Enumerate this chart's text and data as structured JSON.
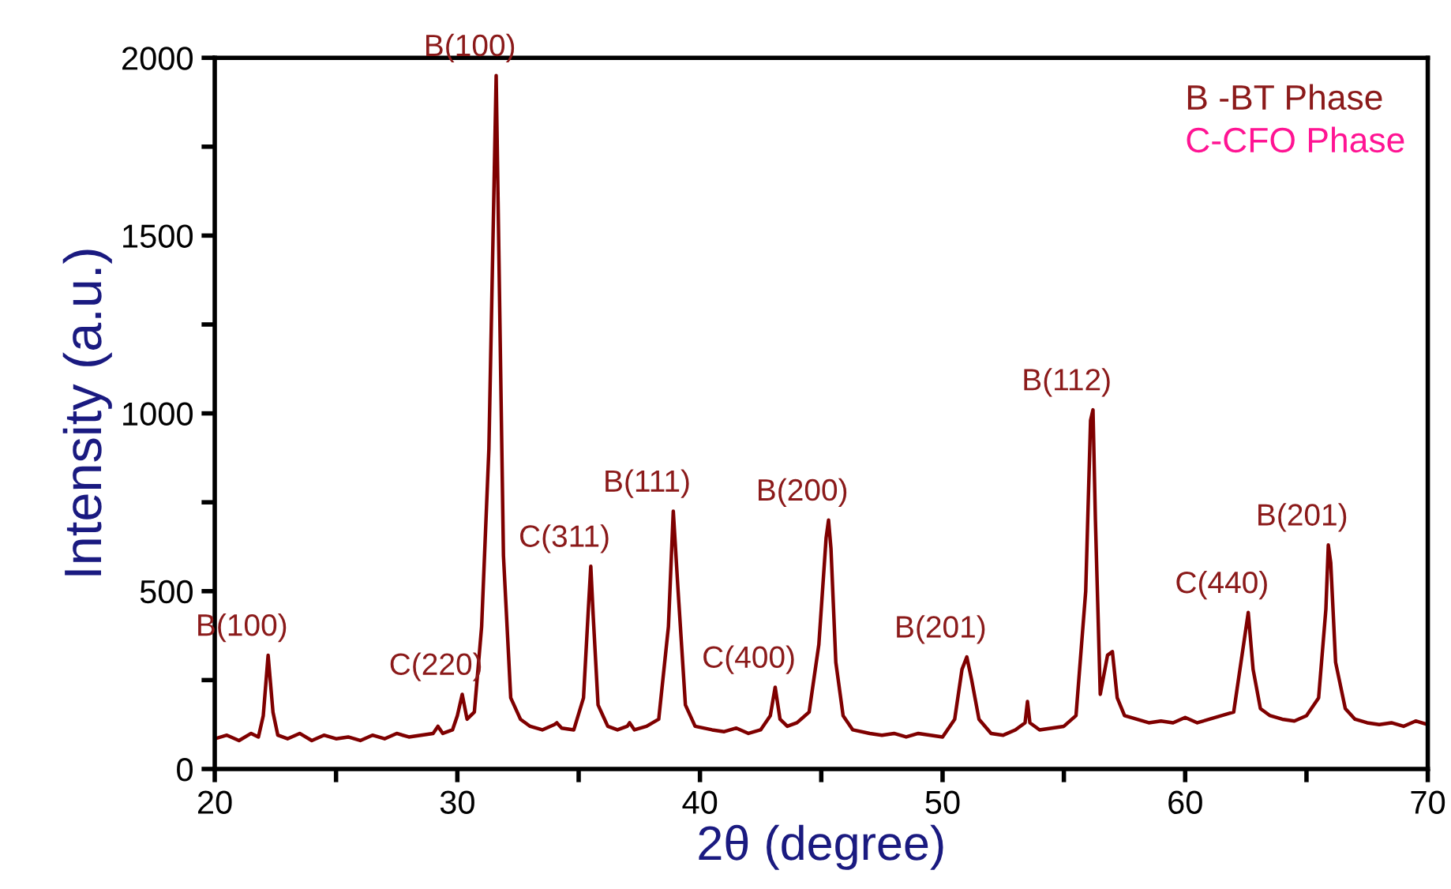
{
  "chart_data": {
    "type": "line",
    "xlabel": "2θ (degree)",
    "ylabel": "Intensity (a.u.)",
    "xlim": [
      20,
      70
    ],
    "ylim": [
      0,
      2000
    ],
    "xticks": [
      20,
      {
        "value": 25,
        "label": null
      },
      30,
      {
        "value": 35,
        "label": null
      },
      40,
      {
        "value": 45,
        "label": null
      },
      50,
      {
        "value": 55,
        "label": null
      },
      60,
      {
        "value": 65,
        "label": null
      },
      70
    ],
    "yticks": [
      0,
      {
        "value": 250,
        "label": null
      },
      500,
      {
        "value": 750,
        "label": null
      },
      1000,
      {
        "value": 1250,
        "label": null
      },
      1500,
      {
        "value": 1750,
        "label": null
      },
      2000
    ],
    "grid": false,
    "legend": false,
    "marker": "none",
    "line_style": "solid",
    "series": [
      {
        "color": "#7f0000",
        "x": [
          20,
          20.5,
          21,
          21.5,
          21.8,
          22.0,
          22.2,
          22.4,
          22.6,
          23,
          23.5,
          24,
          24.5,
          25,
          25.5,
          26,
          26.5,
          27,
          27.5,
          28,
          28.5,
          29.0,
          29.2,
          29.4,
          29.8,
          30.0,
          30.2,
          30.4,
          30.7,
          31.0,
          31.3,
          31.5,
          31.6,
          31.7,
          31.9,
          32.2,
          32.6,
          33,
          33.5,
          34.0,
          34.1,
          34.3,
          34.8,
          35.2,
          35.4,
          35.5,
          35.6,
          35.8,
          36.2,
          36.6,
          37.0,
          37.1,
          37.3,
          37.8,
          38.3,
          38.7,
          38.9,
          39.1,
          39.4,
          39.8,
          40.5,
          41,
          41.5,
          42,
          42.5,
          42.9,
          43.1,
          43.3,
          43.6,
          44,
          44.5,
          44.9,
          45.2,
          45.3,
          45.4,
          45.6,
          45.9,
          46.3,
          47,
          47.5,
          48,
          48.5,
          49,
          49.5,
          50,
          50.5,
          50.8,
          51.0,
          51.2,
          51.5,
          52,
          52.5,
          53,
          53.4,
          53.5,
          53.6,
          54,
          54.5,
          55,
          55.5,
          55.9,
          56.1,
          56.2,
          56.3,
          56.5,
          56.8,
          57.0,
          57.2,
          57.5,
          58,
          58.5,
          59,
          59.5,
          60,
          60.5,
          61,
          61.5,
          62,
          62.3,
          62.6,
          62.8,
          63.1,
          63.5,
          64,
          64.5,
          65,
          65.5,
          65.8,
          65.9,
          66.0,
          66.2,
          66.6,
          67,
          67.5,
          68,
          68.5,
          69,
          69.5,
          70
        ],
        "values": [
          85,
          95,
          80,
          100,
          90,
          150,
          320,
          160,
          95,
          85,
          100,
          80,
          95,
          85,
          90,
          80,
          95,
          85,
          100,
          90,
          95,
          100,
          120,
          100,
          110,
          150,
          210,
          140,
          160,
          400,
          900,
          1600,
          1950,
          1500,
          600,
          200,
          140,
          120,
          110,
          125,
          130,
          115,
          110,
          200,
          450,
          570,
          430,
          180,
          120,
          110,
          120,
          130,
          110,
          120,
          140,
          400,
          725,
          500,
          180,
          120,
          110,
          105,
          115,
          100,
          110,
          150,
          230,
          140,
          120,
          130,
          160,
          350,
          650,
          700,
          620,
          300,
          150,
          110,
          100,
          95,
          100,
          90,
          100,
          95,
          90,
          140,
          280,
          315,
          250,
          140,
          100,
          95,
          110,
          130,
          190,
          130,
          110,
          115,
          120,
          150,
          500,
          980,
          1010,
          700,
          210,
          320,
          330,
          200,
          150,
          140,
          130,
          135,
          130,
          145,
          130,
          140,
          150,
          160,
          300,
          440,
          280,
          170,
          150,
          140,
          135,
          150,
          200,
          450,
          630,
          580,
          300,
          170,
          140,
          130,
          125,
          130,
          120,
          135,
          125
        ]
      }
    ],
    "annotations": [
      {
        "text": "B(100)",
        "x": 22.2,
        "y": 320
      },
      {
        "text": "C(220)",
        "x": 30.2,
        "y": 210
      },
      {
        "text": "B(100)",
        "x": 31.6,
        "y": 1950
      },
      {
        "text": "C(311)",
        "x": 35.5,
        "y": 570
      },
      {
        "text": "B(111)",
        "x": 38.9,
        "y": 725
      },
      {
        "text": "C(400)",
        "x": 43.1,
        "y": 230
      },
      {
        "text": "B(200)",
        "x": 45.3,
        "y": 700
      },
      {
        "text": "B(201)",
        "x": 51.0,
        "y": 315
      },
      {
        "text": "B(112)",
        "x": 56.2,
        "y": 1010
      },
      {
        "text": "C(440)",
        "x": 62.6,
        "y": 440
      },
      {
        "text": "B(201)",
        "x": 65.9,
        "y": 630
      },
      "B -BT Phase",
      "C-CFO Phase"
    ]
  }
}
